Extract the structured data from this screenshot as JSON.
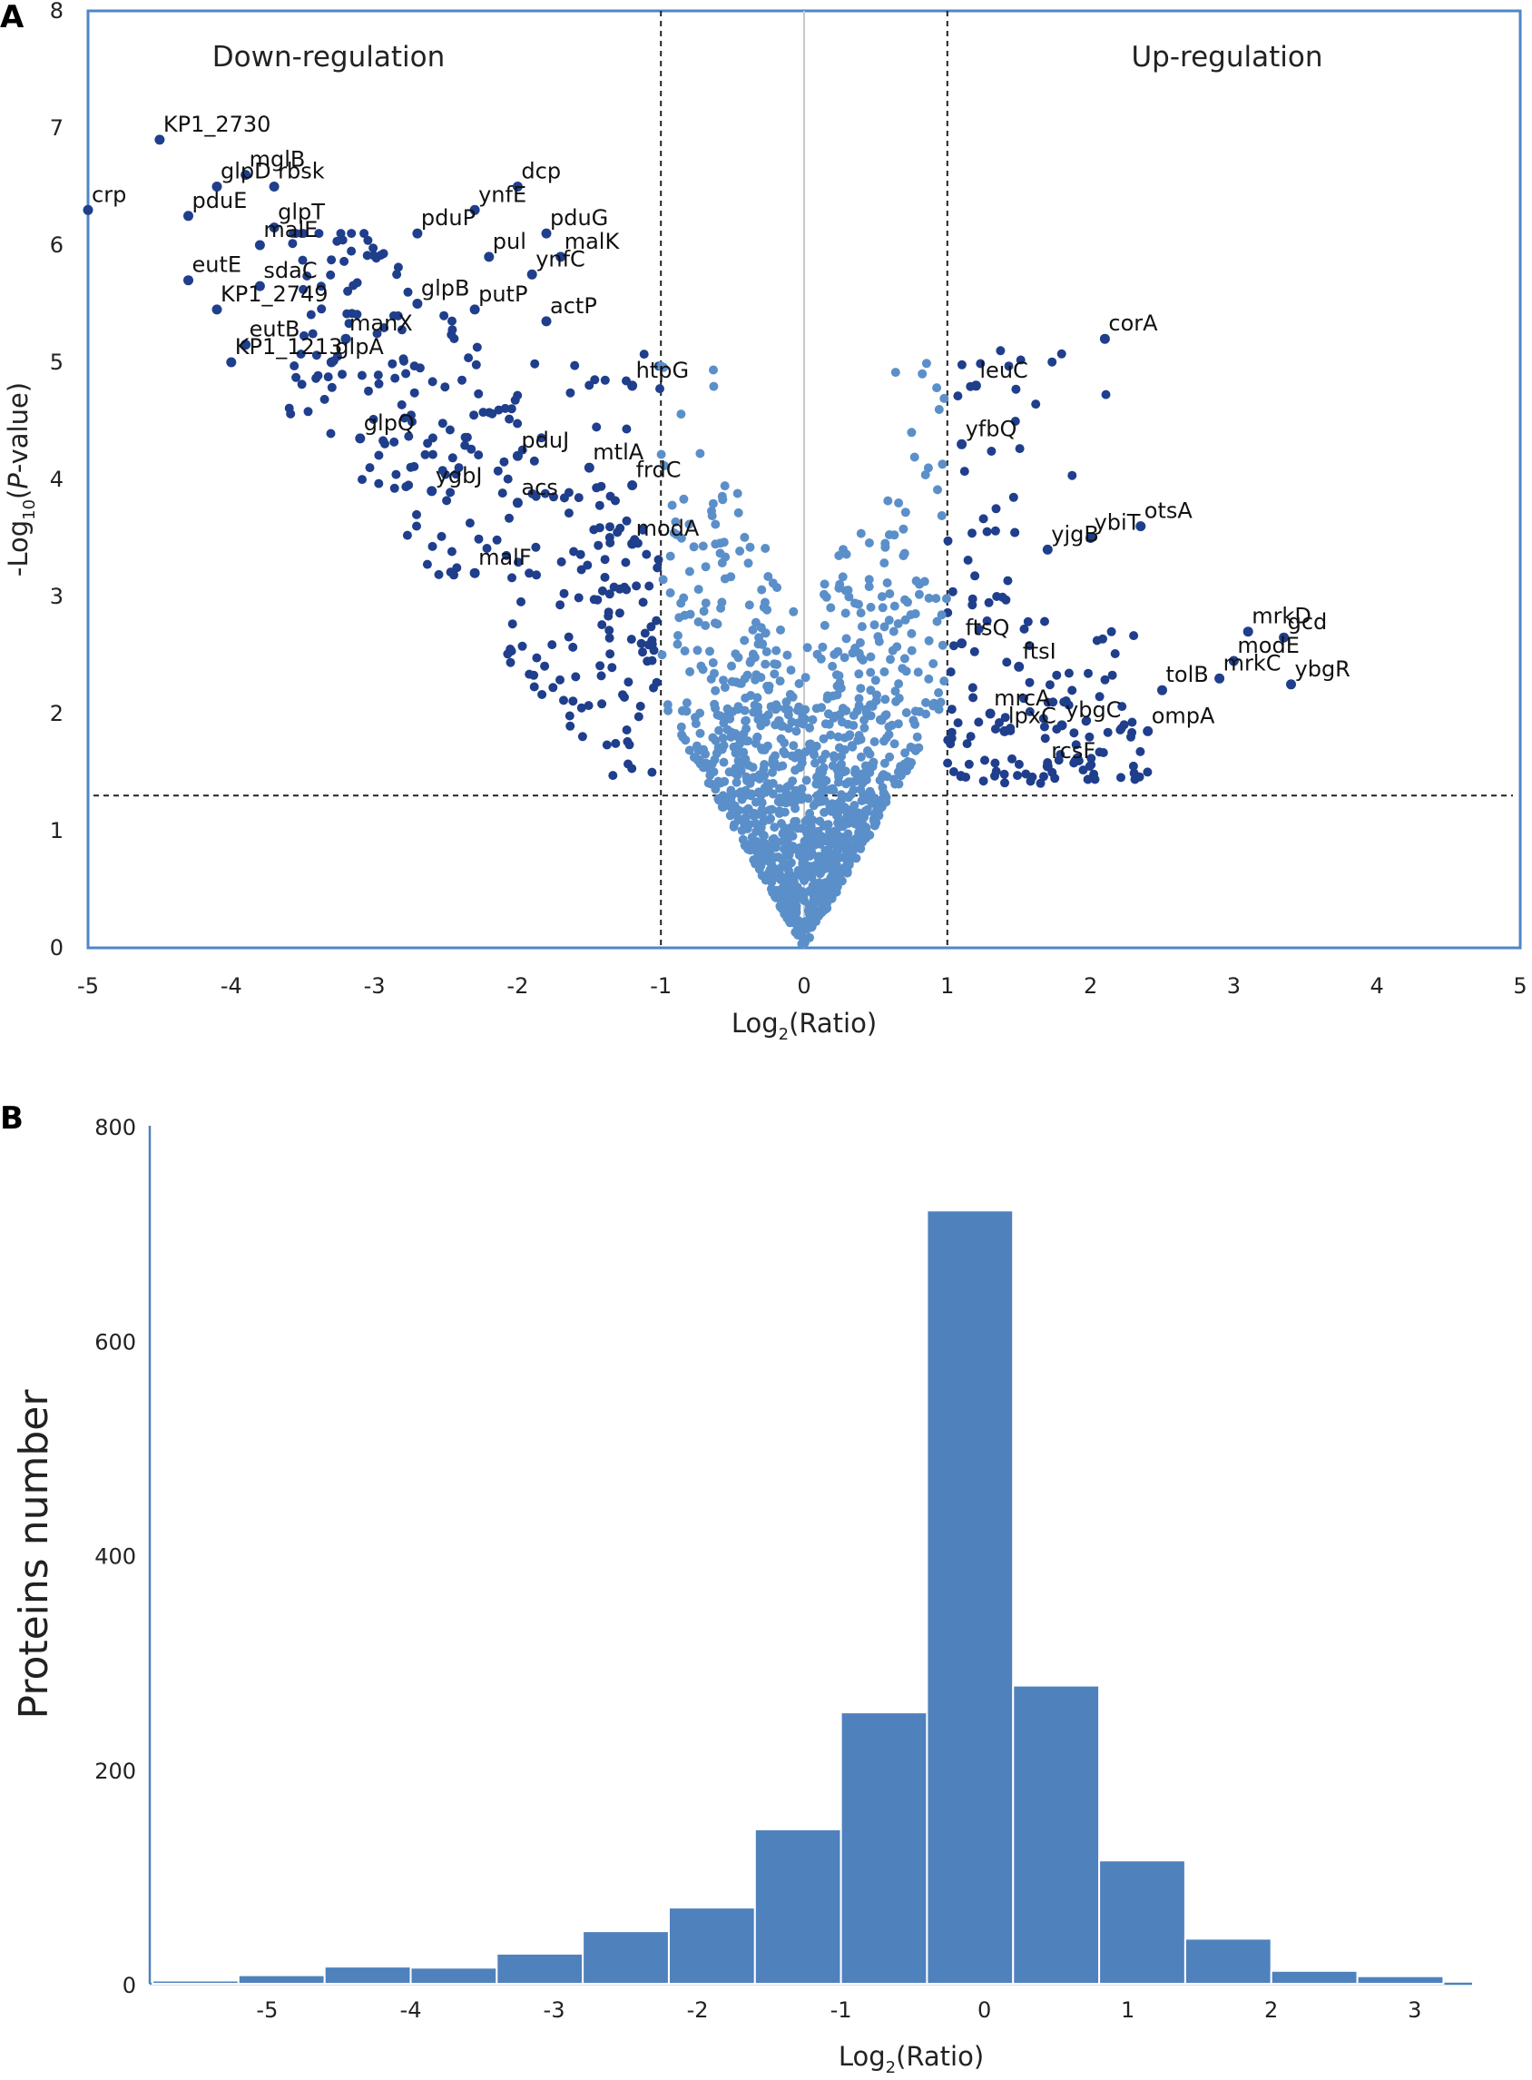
{
  "chart_data": [
    {
      "panel": "A",
      "type": "scatter",
      "title": "",
      "xlabel": "Log2(Ratio)",
      "ylabel": "-Log10(P-value)",
      "xlim": [
        -5,
        5
      ],
      "ylim": [
        0,
        8
      ],
      "xticks": [
        "-5",
        "-4",
        "-3",
        "-2",
        "-1",
        "0",
        "1",
        "2",
        "3",
        "4",
        "5"
      ],
      "yticks": [
        "0",
        "1",
        "2",
        "3",
        "4",
        "5",
        "6",
        "7",
        "8"
      ],
      "region_labels": [
        "Down-regulation",
        "Up-regulation"
      ],
      "thresholds": {
        "log2_ratio": [
          -1,
          1
        ],
        "neg_log10_p": 1.3
      },
      "colors": {
        "significant": "#1f3e8c",
        "nonsignificant": "#5b8fc9",
        "frame": "#4f86c6"
      },
      "labeled_genes": [
        {
          "name": "KP1_2730",
          "x": -4.5,
          "y": 6.9
        },
        {
          "name": "mglB",
          "x": -3.9,
          "y": 6.6
        },
        {
          "name": "glpD",
          "x": -4.1,
          "y": 6.5
        },
        {
          "name": "rbsk",
          "x": -3.7,
          "y": 6.5
        },
        {
          "name": "crp",
          "x": -5.0,
          "y": 6.3
        },
        {
          "name": "pduE",
          "x": -4.3,
          "y": 6.25
        },
        {
          "name": "glpT",
          "x": -3.7,
          "y": 6.15
        },
        {
          "name": "pduP",
          "x": -2.7,
          "y": 6.1
        },
        {
          "name": "ynfE",
          "x": -2.3,
          "y": 6.3
        },
        {
          "name": "dcp",
          "x": -2.0,
          "y": 6.5
        },
        {
          "name": "pduG",
          "x": -1.8,
          "y": 6.1
        },
        {
          "name": "malE",
          "x": -3.8,
          "y": 6.0
        },
        {
          "name": "pul",
          "x": -2.2,
          "y": 5.9
        },
        {
          "name": "malK",
          "x": -1.7,
          "y": 5.9
        },
        {
          "name": "eutE",
          "x": -4.3,
          "y": 5.7
        },
        {
          "name": "sdaC",
          "x": -3.8,
          "y": 5.65
        },
        {
          "name": "ynfC",
          "x": -1.9,
          "y": 5.75
        },
        {
          "name": "KP1_2749",
          "x": -4.1,
          "y": 5.45
        },
        {
          "name": "glpB",
          "x": -2.7,
          "y": 5.5
        },
        {
          "name": "putP",
          "x": -2.3,
          "y": 5.45
        },
        {
          "name": "actP",
          "x": -1.8,
          "y": 5.35
        },
        {
          "name": "manX",
          "x": -3.2,
          "y": 5.2
        },
        {
          "name": "eutB",
          "x": -3.9,
          "y": 5.15
        },
        {
          "name": "KP1_1213",
          "x": -4.0,
          "y": 5.0
        },
        {
          "name": "glpA",
          "x": -3.3,
          "y": 5.0
        },
        {
          "name": "htpG",
          "x": -1.2,
          "y": 4.8
        },
        {
          "name": "glpQ",
          "x": -3.1,
          "y": 4.35
        },
        {
          "name": "pduJ",
          "x": -2.0,
          "y": 4.2
        },
        {
          "name": "ygbJ",
          "x": -2.6,
          "y": 3.9
        },
        {
          "name": "mtlA",
          "x": -1.5,
          "y": 4.1
        },
        {
          "name": "frdC",
          "x": -1.2,
          "y": 3.95
        },
        {
          "name": "acs",
          "x": -2.0,
          "y": 3.8
        },
        {
          "name": "modA",
          "x": -1.2,
          "y": 3.45
        },
        {
          "name": "malF",
          "x": -2.3,
          "y": 3.2
        },
        {
          "name": "corA",
          "x": 2.1,
          "y": 5.2
        },
        {
          "name": "leuC",
          "x": 1.2,
          "y": 4.8
        },
        {
          "name": "yfbQ",
          "x": 1.1,
          "y": 4.3
        },
        {
          "name": "otsA",
          "x": 2.35,
          "y": 3.6
        },
        {
          "name": "ybiT",
          "x": 2.0,
          "y": 3.5
        },
        {
          "name": "yjgB",
          "x": 1.7,
          "y": 3.4
        },
        {
          "name": "mrkD",
          "x": 3.1,
          "y": 2.7
        },
        {
          "name": "gcd",
          "x": 3.35,
          "y": 2.65
        },
        {
          "name": "ftsQ",
          "x": 1.1,
          "y": 2.6
        },
        {
          "name": "modE",
          "x": 3.0,
          "y": 2.45
        },
        {
          "name": "ftsI",
          "x": 1.5,
          "y": 2.4
        },
        {
          "name": "tolB",
          "x": 2.5,
          "y": 2.2
        },
        {
          "name": "mrkC",
          "x": 2.9,
          "y": 2.3
        },
        {
          "name": "ybgR",
          "x": 3.4,
          "y": 2.25
        },
        {
          "name": "mrcA",
          "x": 1.3,
          "y": 2.0
        },
        {
          "name": "ybgC",
          "x": 1.8,
          "y": 1.9
        },
        {
          "name": "lpxC",
          "x": 1.4,
          "y": 1.85
        },
        {
          "name": "ompA",
          "x": 2.4,
          "y": 1.85
        },
        {
          "name": "rcsF",
          "x": 1.7,
          "y": 1.55
        }
      ]
    },
    {
      "panel": "B",
      "type": "bar",
      "title": "",
      "xlabel": "Log2(Ratio)",
      "ylabel": "Proteins number",
      "ylim": [
        0,
        800
      ],
      "xlim": [
        -5.8,
        3.4
      ],
      "yticks": [
        "0",
        "200",
        "400",
        "600",
        "800"
      ],
      "xticks": [
        "-5",
        "-4",
        "-3",
        "-2",
        "-1",
        "0",
        "1",
        "2",
        "3"
      ],
      "bin_width": 0.6,
      "bin_starts": [
        -5.8,
        -5.2,
        -4.6,
        -4.0,
        -3.4,
        -2.8,
        -2.2,
        -1.6,
        -1.0,
        -0.4,
        0.2,
        0.8,
        1.4,
        2.0,
        2.6
      ],
      "values": [
        3,
        8,
        16,
        15,
        28,
        49,
        71,
        144,
        253,
        721,
        278,
        115,
        42,
        12,
        7
      ],
      "color": "#4f81bd"
    }
  ]
}
